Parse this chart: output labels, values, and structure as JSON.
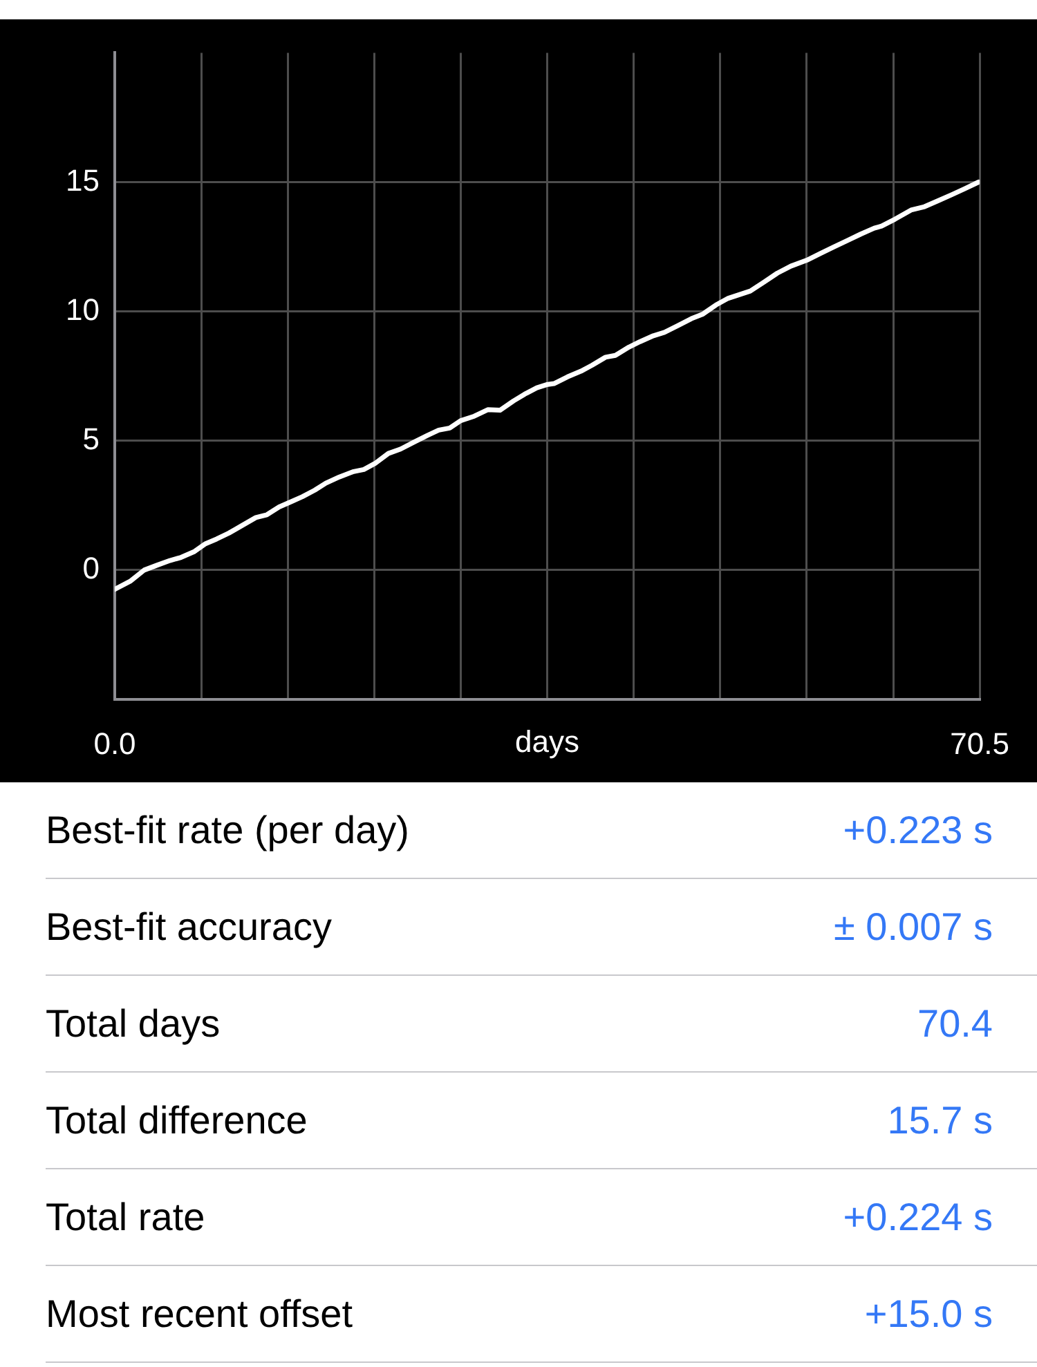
{
  "chart_data": {
    "type": "line",
    "xlabel": "days",
    "x": [
      0,
      1.3,
      2.4,
      3.4,
      4.5,
      5.4,
      6.5,
      7.4,
      8.3,
      9.3,
      10.4,
      11.5,
      12.4,
      13.4,
      14.4,
      15.3,
      16.3,
      17.2,
      18.3,
      19.4,
      20.3,
      21.2,
      22.3,
      23.3,
      24.4,
      25.5,
      26.4,
      27.3,
      28.2,
      29.3,
      30.4,
      31.4,
      32.5,
      33.4,
      34.4,
      35.2,
      35.8,
      36.9,
      38.0,
      38.9,
      40.0,
      40.8,
      41.9,
      42.8,
      43.9,
      44.8,
      45.9,
      47.0,
      47.9,
      49.0,
      50.0,
      50.9,
      51.8,
      52.9,
      54.0,
      55.1,
      56.4,
      57.5,
      58.6,
      59.7,
      60.8,
      61.9,
      62.5,
      63.6,
      64.9,
      66.0,
      67.1,
      68.2,
      69.3,
      70.4
    ],
    "series": [
      {
        "color": "#ffffff",
        "values": [
          -0.74,
          -0.42,
          0.0,
          0.18,
          0.37,
          0.49,
          0.72,
          1.02,
          1.2,
          1.43,
          1.73,
          2.03,
          2.14,
          2.44,
          2.65,
          2.84,
          3.09,
          3.36,
          3.6,
          3.8,
          3.89,
          4.12,
          4.51,
          4.68,
          4.95,
          5.21,
          5.41,
          5.49,
          5.78,
          5.95,
          6.2,
          6.18,
          6.54,
          6.8,
          7.05,
          7.17,
          7.21,
          7.47,
          7.69,
          7.92,
          8.23,
          8.3,
          8.62,
          8.83,
          9.06,
          9.19,
          9.45,
          9.72,
          9.89,
          10.25,
          10.51,
          10.65,
          10.79,
          11.13,
          11.48,
          11.75,
          11.98,
          12.24,
          12.49,
          12.74,
          12.99,
          13.22,
          13.3,
          13.57,
          13.92,
          14.05,
          14.28,
          14.51,
          14.75,
          15.0
        ]
      }
    ],
    "xlim": [
      0,
      70.5
    ],
    "xticks": [
      {
        "value": 0,
        "label": "0.0"
      },
      {
        "value": 7.05,
        "label": null
      },
      {
        "value": 14.1,
        "label": null
      },
      {
        "value": 21.15,
        "label": null
      },
      {
        "value": 28.2,
        "label": null
      },
      {
        "value": 35.25,
        "label": null
      },
      {
        "value": 42.3,
        "label": null
      },
      {
        "value": 49.35,
        "label": null
      },
      {
        "value": 56.4,
        "label": null
      },
      {
        "value": 63.45,
        "label": null
      },
      {
        "value": 70.5,
        "label": "70.5"
      }
    ],
    "ylim": [
      -5,
      20
    ],
    "yticks": [
      0,
      5,
      10,
      15
    ],
    "grid": true,
    "annotations": [
      "Best-fit rate (per day)",
      "+0.223 s",
      "Best-fit accuracy",
      "± 0.007 s",
      "Total days",
      "70.4",
      "Total difference",
      "15.7 s",
      "Total rate",
      "+0.224 s",
      "Most recent offset",
      "+15.0 s"
    ]
  }
}
